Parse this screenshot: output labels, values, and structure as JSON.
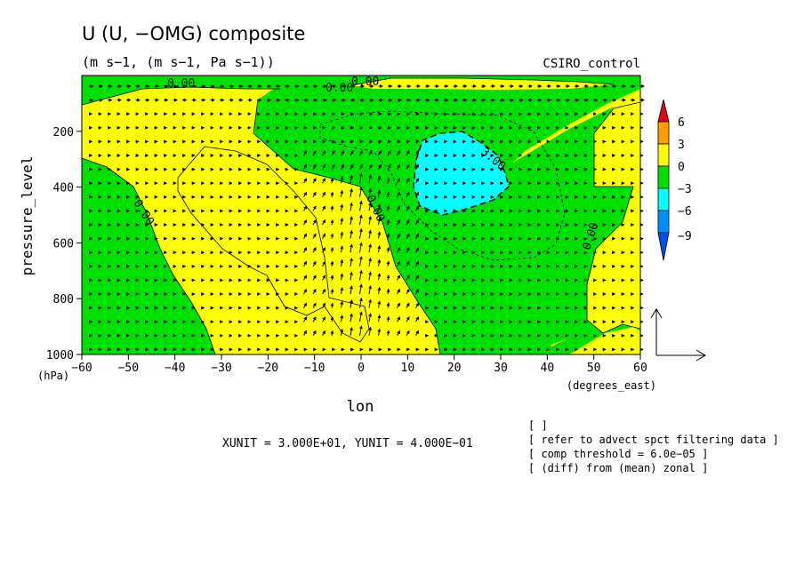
{
  "chart_data": {
    "type": "contour",
    "title": "U (U, −OMG) composite",
    "subtitle": "(m s−1, (m s−1, Pa s−1))",
    "model_label": "CSIRO_control",
    "xlabel": "lon",
    "xunits": "(degrees_east)",
    "ylabel": "pressure_level",
    "yunits": "(hPa)",
    "xlim": [
      -60,
      60
    ],
    "ylim": [
      1000,
      0
    ],
    "xticks": [
      "−60",
      "−50",
      "−40",
      "−30",
      "−20",
      "−10",
      "0",
      "10",
      "20",
      "30",
      "40",
      "50",
      "60"
    ],
    "yticks": [
      "200",
      "400",
      "600",
      "800",
      "1000"
    ],
    "contour_labels": [
      "0.00",
      "0.00",
      "0.00",
      "0.00",
      "0.00",
      "0.00",
      "3.00"
    ],
    "colorbar": {
      "labels": [
        "6",
        "3",
        "0",
        "−3",
        "−6",
        "−9"
      ],
      "colors": [
        "#e8001a",
        "#ff9e00",
        "#ffff00",
        "#00e000",
        "#00ffff",
        "#0090ff",
        "#0050f0"
      ]
    },
    "vector_unit_label": "XUNIT = 3.000E+01, YUNIT = 4.000E−01",
    "notes": [
      "[  ]",
      "[ refer to advect spct filtering data ]",
      "[ comp threshold = 6.0e−05 ]",
      "[ (diff) from (mean) zonal ]"
    ]
  }
}
